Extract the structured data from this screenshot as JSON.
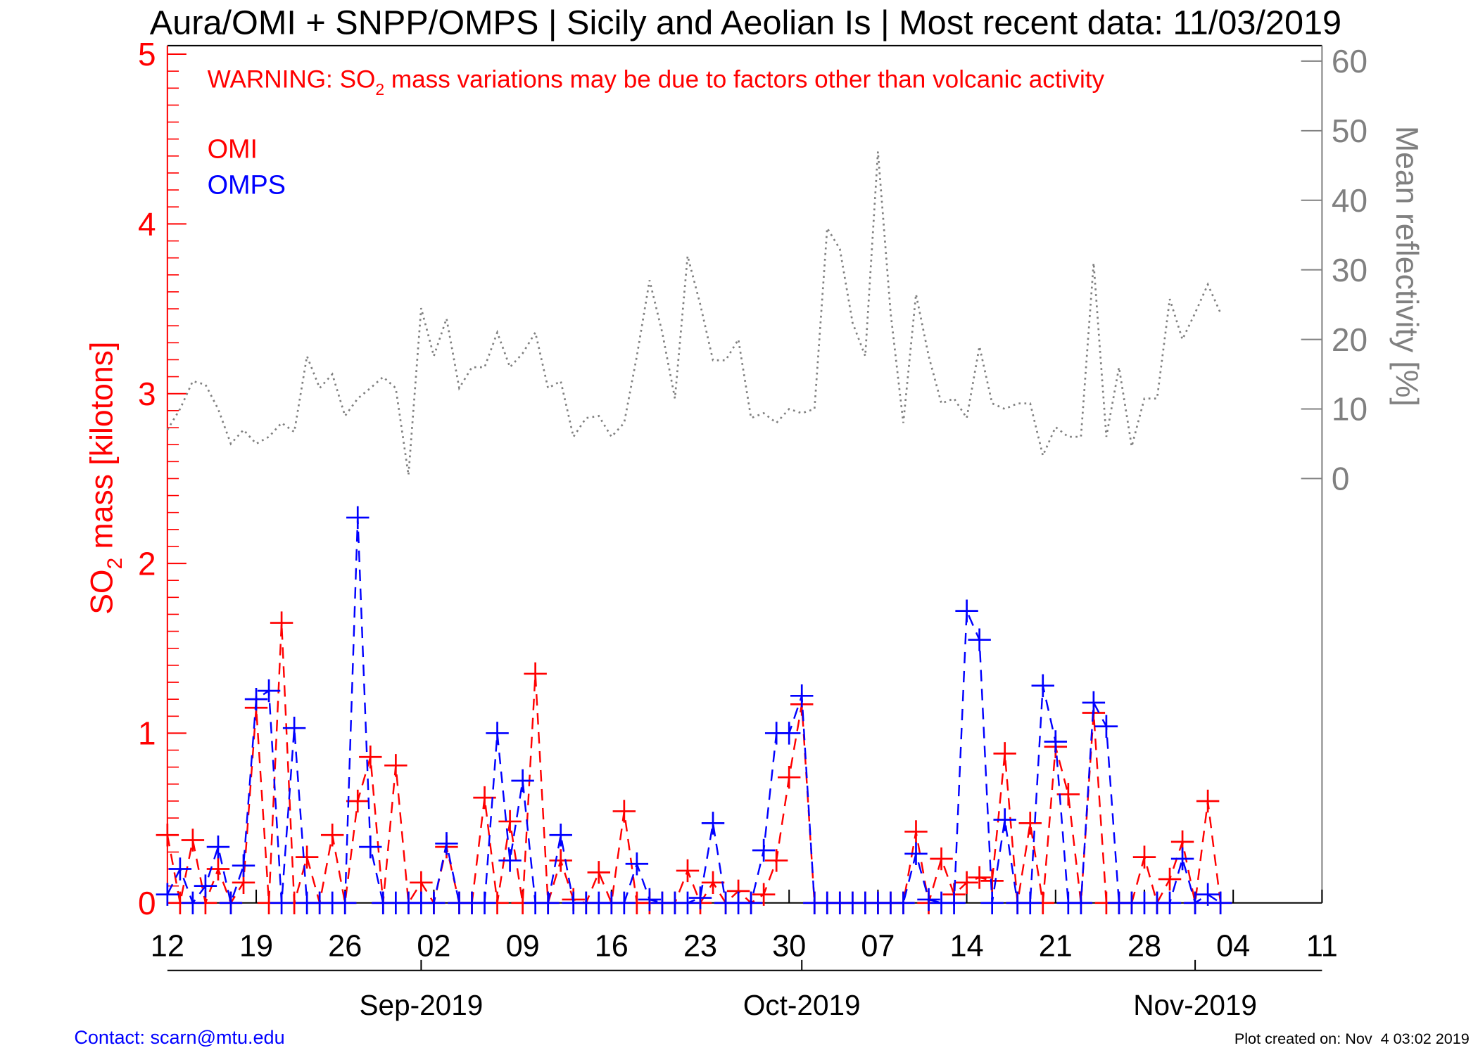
{
  "chart_data": {
    "type": "line",
    "title": "Aura/OMI + SNPP/OMPS | Sicily and Aeolian Is | Most recent data: 11/03/2019",
    "warning": [
      "WARNING: SO",
      "2",
      " mass variations may be due to factors other than volcanic activity"
    ],
    "ylabel": [
      "SO",
      "2",
      " mass [kilotons]"
    ],
    "y2label": "Mean reflectivity [%]",
    "x": [
      "2019-08-12",
      "2019-08-13",
      "2019-08-14",
      "2019-08-15",
      "2019-08-16",
      "2019-08-17",
      "2019-08-18",
      "2019-08-19",
      "2019-08-20",
      "2019-08-21",
      "2019-08-22",
      "2019-08-23",
      "2019-08-24",
      "2019-08-25",
      "2019-08-26",
      "2019-08-27",
      "2019-08-28",
      "2019-08-29",
      "2019-08-30",
      "2019-08-31",
      "2019-09-01",
      "2019-09-02",
      "2019-09-03",
      "2019-09-04",
      "2019-09-05",
      "2019-09-06",
      "2019-09-07",
      "2019-09-08",
      "2019-09-09",
      "2019-09-10",
      "2019-09-11",
      "2019-09-12",
      "2019-09-13",
      "2019-09-14",
      "2019-09-15",
      "2019-09-16",
      "2019-09-17",
      "2019-09-18",
      "2019-09-19",
      "2019-09-20",
      "2019-09-21",
      "2019-09-22",
      "2019-09-23",
      "2019-09-24",
      "2019-09-25",
      "2019-09-26",
      "2019-09-27",
      "2019-09-28",
      "2019-09-29",
      "2019-09-30",
      "2019-10-01",
      "2019-10-02",
      "2019-10-03",
      "2019-10-04",
      "2019-10-05",
      "2019-10-06",
      "2019-10-07",
      "2019-10-08",
      "2019-10-09",
      "2019-10-10",
      "2019-10-11",
      "2019-10-12",
      "2019-10-13",
      "2019-10-14",
      "2019-10-15",
      "2019-10-16",
      "2019-10-17",
      "2019-10-18",
      "2019-10-19",
      "2019-10-20",
      "2019-10-21",
      "2019-10-22",
      "2019-10-23",
      "2019-10-24",
      "2019-10-25",
      "2019-10-26",
      "2019-10-27",
      "2019-10-28",
      "2019-10-29",
      "2019-10-30",
      "2019-10-31",
      "2019-11-01",
      "2019-11-02",
      "2019-11-03"
    ],
    "xlim": [
      "2019-08-12",
      "2019-11-11"
    ],
    "xticks": [
      {
        "value": "2019-08-12",
        "label": "12"
      },
      {
        "value": "2019-08-19",
        "label": "19"
      },
      {
        "value": "2019-08-26",
        "label": "26"
      },
      {
        "value": "2019-09-02",
        "label": "02"
      },
      {
        "value": "2019-09-09",
        "label": "09"
      },
      {
        "value": "2019-09-16",
        "label": "16"
      },
      {
        "value": "2019-09-23",
        "label": "23"
      },
      {
        "value": "2019-09-30",
        "label": "30"
      },
      {
        "value": "2019-10-07",
        "label": "07"
      },
      {
        "value": "2019-10-14",
        "label": "14"
      },
      {
        "value": "2019-10-21",
        "label": "21"
      },
      {
        "value": "2019-10-28",
        "label": "28"
      },
      {
        "value": "2019-11-04",
        "label": "04"
      },
      {
        "value": "2019-11-11",
        "label": "11"
      }
    ],
    "x2ticks": [
      {
        "value": "2019-09-01",
        "label": "Sep-2019"
      },
      {
        "value": "2019-10-01",
        "label": "Oct-2019"
      },
      {
        "value": "2019-11-01",
        "label": "Nov-2019"
      }
    ],
    "ylim": [
      0,
      5
    ],
    "yticks": [
      0,
      1,
      2,
      3,
      4,
      5
    ],
    "y2lim": [
      -61,
      61
    ],
    "y2ticks": [
      0,
      10,
      20,
      30,
      40,
      50,
      60
    ],
    "series": [
      {
        "name": "OMI",
        "color": "#ff0000",
        "values": [
          0.4,
          0,
          0.37,
          0,
          0.2,
          0,
          0.12,
          1.15,
          0,
          1.65,
          0,
          0.27,
          0,
          0.4,
          0,
          0.6,
          0.86,
          0,
          0.81,
          0,
          0.12,
          0,
          0.33,
          0,
          0,
          0.62,
          0,
          0.48,
          0,
          1.35,
          0,
          0.25,
          0.02,
          0,
          0.18,
          0,
          0.54,
          0,
          0,
          0,
          0,
          0.19,
          0,
          0.12,
          0,
          0.07,
          0,
          0.05,
          0.25,
          0.74,
          1.17,
          0,
          0,
          0,
          0,
          0,
          0,
          0,
          0,
          0.42,
          0,
          0.26,
          0.05,
          0.12,
          0.15,
          0.13,
          0.88,
          0,
          0.47,
          0,
          0.92,
          0.64,
          0,
          1.12,
          0,
          0,
          0,
          0.27,
          0,
          0.14,
          0.36,
          0,
          0.6,
          0
        ]
      },
      {
        "name": "OMPS",
        "color": "#0000ff",
        "values": [
          0.05,
          0.2,
          0,
          0.1,
          0.33,
          0,
          0.22,
          1.2,
          1.25,
          0,
          1.03,
          0,
          0,
          0,
          0,
          2.27,
          0.33,
          0,
          0,
          0,
          0,
          0,
          0.35,
          0,
          0,
          0,
          1.0,
          0.25,
          0.72,
          0,
          0,
          0.4,
          0,
          0,
          0,
          0,
          0,
          0.23,
          0.02,
          0,
          0,
          0,
          0.03,
          0.47,
          0,
          0,
          0,
          0.31,
          1.0,
          1.0,
          1.22,
          0,
          0,
          0,
          0,
          0,
          0,
          0,
          0,
          0.29,
          0.02,
          0,
          0,
          1.72,
          1.55,
          0,
          0.49,
          0,
          0,
          1.28,
          0.95,
          0,
          0,
          1.18,
          1.04,
          0,
          0,
          0,
          0,
          0,
          0.26,
          0,
          0.05,
          0
        ]
      },
      {
        "color": "#808080",
        "axis": "y2",
        "values": [
          7,
          10,
          14,
          13.5,
          10,
          5,
          7,
          5,
          6,
          8,
          6.7,
          17.6,
          13,
          15,
          9,
          11.5,
          13,
          14.6,
          13,
          0.5,
          24.5,
          17.6,
          23,
          13,
          16,
          16,
          21,
          16,
          18,
          21,
          13,
          14,
          6,
          8.7,
          9,
          6,
          8,
          17.6,
          28.5,
          21,
          11.5,
          32,
          25,
          17,
          17,
          20,
          8.7,
          9.4,
          8,
          10,
          9.4,
          10,
          36,
          33,
          22.4,
          17.6,
          47,
          23.8,
          8,
          26.5,
          17.6,
          10.8,
          11.5,
          8.7,
          19,
          10.8,
          10,
          10.8,
          10.8,
          3.3,
          7.4,
          6,
          6,
          31,
          6,
          16,
          4.6,
          11.5,
          11.5,
          25.8,
          20,
          23.8,
          27.9,
          23.8
        ]
      }
    ]
  },
  "footer": {
    "contact": "Contact: scarn@mtu.edu",
    "created": "Plot created on: Nov  4 03:02 2019"
  }
}
